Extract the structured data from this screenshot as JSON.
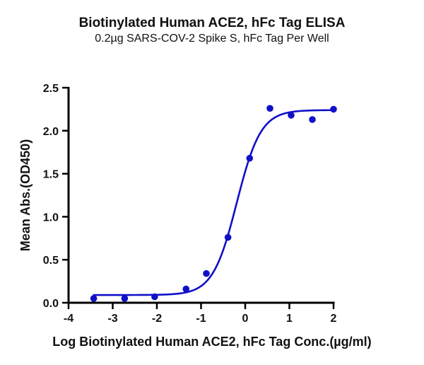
{
  "header": {
    "title": "Biotinylated Human ACE2, hFc Tag ELISA",
    "subtitle": "0.2µg SARS-COV-2 Spike S, hFc Tag Per Well"
  },
  "colors": {
    "series": "#1010c8",
    "axis": "#000000",
    "text": "#111111"
  },
  "chart_data": {
    "type": "scatter",
    "title": "Biotinylated Human ACE2, hFc Tag ELISA",
    "subtitle": "0.2µg SARS-COV-2 Spike S, hFc Tag Per Well",
    "xlabel": "Log Biotinylated Human ACE2, hFc Tag Conc.(µg/ml)",
    "ylabel": "Mean Abs.(OD450)",
    "xlim": [
      -4,
      2
    ],
    "ylim": [
      0,
      2.5
    ],
    "xticks": [
      -4,
      -3,
      -2,
      -1,
      0,
      1,
      2
    ],
    "yticks": [
      0.0,
      0.5,
      1.0,
      1.5,
      2.0,
      2.5
    ],
    "xtick_labels": [
      "-4",
      "-3",
      "-2",
      "-1",
      "0",
      "1",
      "2"
    ],
    "ytick_labels": [
      "0.0",
      "0.5",
      "1.0",
      "1.5",
      "2.0",
      "2.5"
    ],
    "grid": false,
    "legend": null,
    "series": [
      {
        "name": "Mean Abs.(OD450)",
        "x": [
          -3.43,
          -2.73,
          -2.05,
          -1.34,
          -0.88,
          -0.39,
          0.1,
          0.56,
          1.04,
          1.52,
          2.0
        ],
        "y": [
          0.05,
          0.05,
          0.07,
          0.16,
          0.34,
          0.76,
          1.68,
          2.26,
          2.18,
          2.13,
          2.25
        ],
        "marker": "circle"
      }
    ],
    "fit": {
      "model": "4PL sigmoidal",
      "bottom": 0.09,
      "top": 2.24,
      "logEC50": -0.19,
      "hill_slope": 1.6,
      "x_range": [
        -3.43,
        2.0
      ]
    }
  }
}
